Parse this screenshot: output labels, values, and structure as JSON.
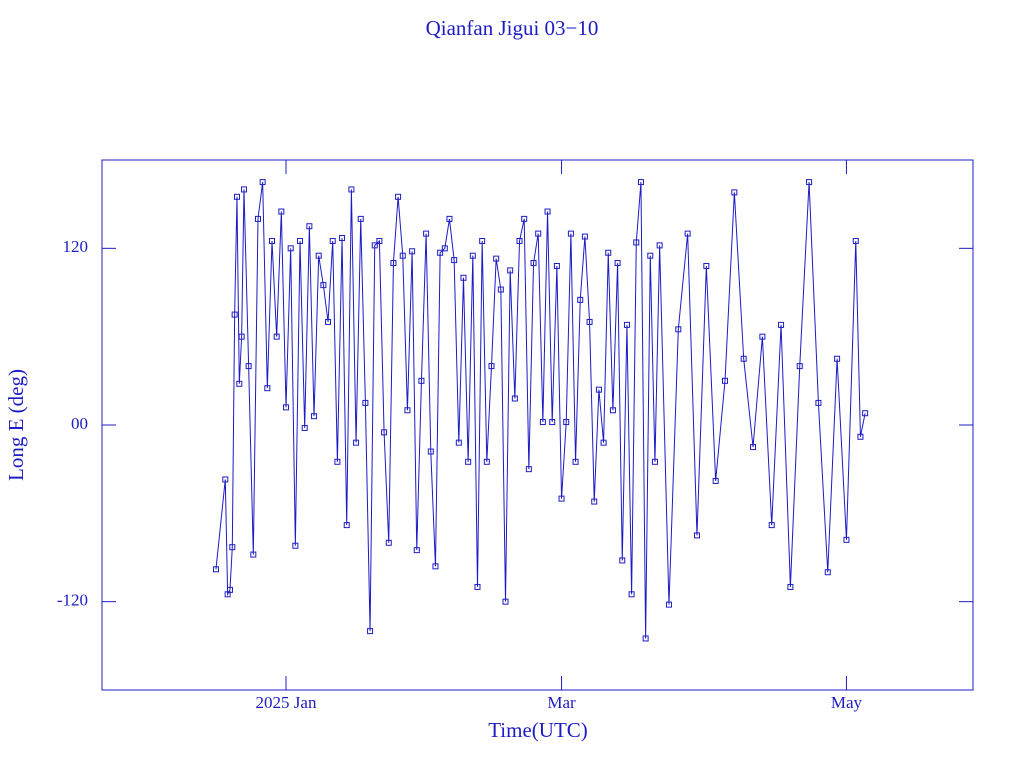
{
  "chart_data": {
    "type": "line",
    "title": "Qianfan Jigui 03−10",
    "x_label": "Time(UTC)",
    "y_label": "Long E (deg)",
    "color": "#1c1cc4",
    "xlim": [
      -39.4,
      147.1
    ],
    "xticks": [
      {
        "value": 0,
        "label": "2025 Jan"
      },
      {
        "value": 59,
        "label": "Mar"
      },
      {
        "value": 120,
        "label": "May"
      }
    ],
    "ylim": [
      -180,
      180
    ],
    "yticks": [
      -120,
      {
        "value": 0,
        "label": "00"
      },
      120
    ],
    "x": [
      -15,
      -13,
      -12.5,
      -12,
      -11.5,
      -11,
      -10.5,
      -10,
      -9.5,
      -9,
      -8,
      -7,
      -6,
      -5,
      -4,
      -3,
      -2,
      -1,
      0,
      1,
      2,
      3,
      4,
      5,
      6,
      7,
      8,
      9,
      10,
      11,
      12,
      13,
      14,
      15,
      16,
      17,
      18,
      19,
      20,
      21,
      22,
      23,
      24,
      25,
      26,
      27,
      28,
      29,
      30,
      31,
      32,
      33,
      34,
      35,
      36,
      37,
      38,
      39,
      40,
      41,
      42,
      43,
      44,
      45,
      46,
      47,
      48,
      49,
      50,
      51,
      52,
      53,
      54,
      55,
      56,
      57,
      58,
      59,
      60,
      61,
      62,
      63,
      64,
      65,
      66,
      67,
      68,
      69,
      70,
      71,
      72,
      73,
      74,
      75,
      76,
      77,
      78,
      79,
      80,
      82,
      84,
      86,
      88,
      90,
      92,
      94,
      96,
      98,
      100,
      102,
      104,
      106,
      108,
      110,
      112,
      114,
      116,
      118,
      120,
      122,
      123,
      124
    ],
    "values": [
      -98,
      -37,
      -115,
      -112,
      -83,
      75,
      155,
      28,
      60,
      160,
      40,
      -88,
      140,
      165,
      25,
      125,
      60,
      145,
      12,
      120,
      -82,
      125,
      -2,
      135,
      6,
      115,
      95,
      70,
      125,
      -25,
      127,
      -68,
      160,
      -12,
      140,
      15,
      -140,
      122,
      125,
      -5,
      -80,
      110,
      155,
      115,
      10,
      118,
      -85,
      30,
      130,
      -18,
      -96,
      117,
      120,
      140,
      112,
      -12,
      100,
      -25,
      115,
      -110,
      125,
      -25,
      40,
      113,
      92,
      -120,
      105,
      18,
      125,
      140,
      -30,
      110,
      130,
      2,
      145,
      2,
      108,
      -50,
      2,
      130,
      -25,
      85,
      128,
      70,
      -52,
      24,
      -12,
      117,
      10,
      110,
      -92,
      68,
      -115,
      124,
      165,
      -145,
      115,
      -25,
      122,
      -122,
      65,
      130,
      -75,
      108,
      -38,
      30,
      158,
      45,
      -15,
      60,
      -68,
      68,
      -110,
      40,
      165,
      15,
      -100,
      45,
      -78,
      125,
      -8,
      8
    ]
  }
}
